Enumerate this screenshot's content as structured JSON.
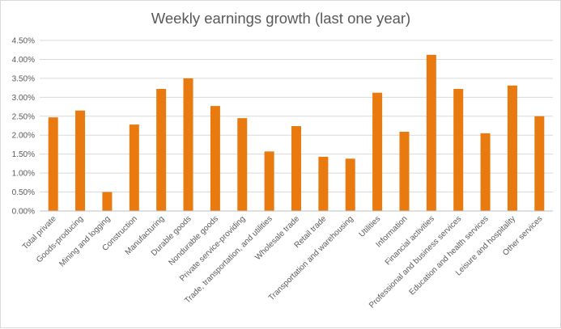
{
  "chart_data": {
    "type": "bar",
    "title": "Weekly earnings growth (last one year)",
    "xlabel": "",
    "ylabel": "",
    "ylim": [
      0,
      4.5
    ],
    "ytick_step": 0.5,
    "ytick_format": "percent_2dp",
    "grid": true,
    "legend": "none",
    "bar_color": "#E97A0F",
    "categories": [
      "Total private",
      "Goods-producing",
      "Mining and logging",
      "Construction",
      "Manufacturing",
      "Durable goods",
      "Nondurable goods",
      "Private service-providing",
      "Trade, transportation, and utilities",
      "Wholesale trade",
      "Retail trade",
      "Transportation and warehousing",
      "Utilities",
      "Information",
      "Financial activities",
      "Professional and business services",
      "Education and health services",
      "Leisure and hospitality",
      "Other services"
    ],
    "values": [
      2.47,
      2.65,
      0.5,
      2.28,
      3.22,
      3.5,
      2.77,
      2.45,
      1.57,
      2.24,
      1.43,
      1.38,
      3.12,
      2.09,
      4.12,
      3.22,
      2.05,
      3.31,
      2.5
    ]
  }
}
